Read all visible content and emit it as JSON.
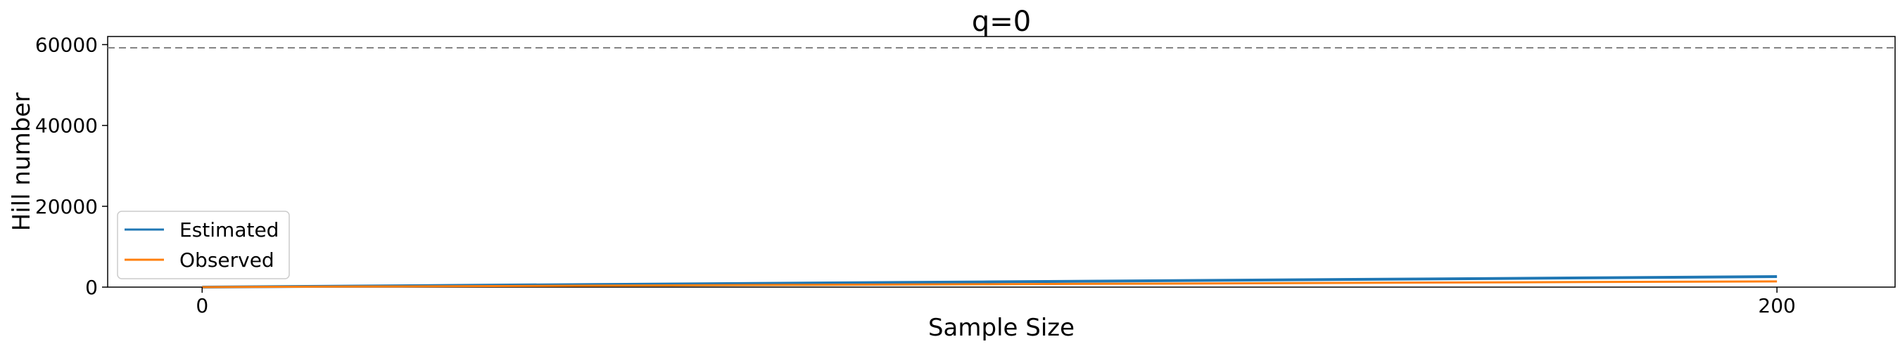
{
  "chart_data": {
    "type": "line",
    "title": "q=0",
    "xlabel": "Sample Size",
    "ylabel": "Hill number",
    "xlim": [
      -12,
      215
    ],
    "ylim": [
      0,
      62000
    ],
    "xticks": [
      0,
      200
    ],
    "yticks": [
      0,
      20000,
      40000,
      60000
    ],
    "grid": false,
    "legend_position": "lower-left",
    "reference_line": {
      "y": 59200,
      "style": "dashed",
      "color": "#808080"
    },
    "series": [
      {
        "name": "Estimated",
        "color": "#1f77b4",
        "x": [
          0,
          25,
          50,
          75,
          100,
          125,
          150,
          175,
          200
        ],
        "y": [
          0,
          330,
          650,
          980,
          1300,
          1620,
          1950,
          2280,
          2600
        ]
      },
      {
        "name": "Observed",
        "color": "#ff7f0e",
        "x": [
          0,
          25,
          50,
          75,
          100,
          125,
          150,
          175,
          200
        ],
        "y": [
          0,
          180,
          360,
          540,
          720,
          900,
          1080,
          1250,
          1420
        ]
      }
    ]
  }
}
